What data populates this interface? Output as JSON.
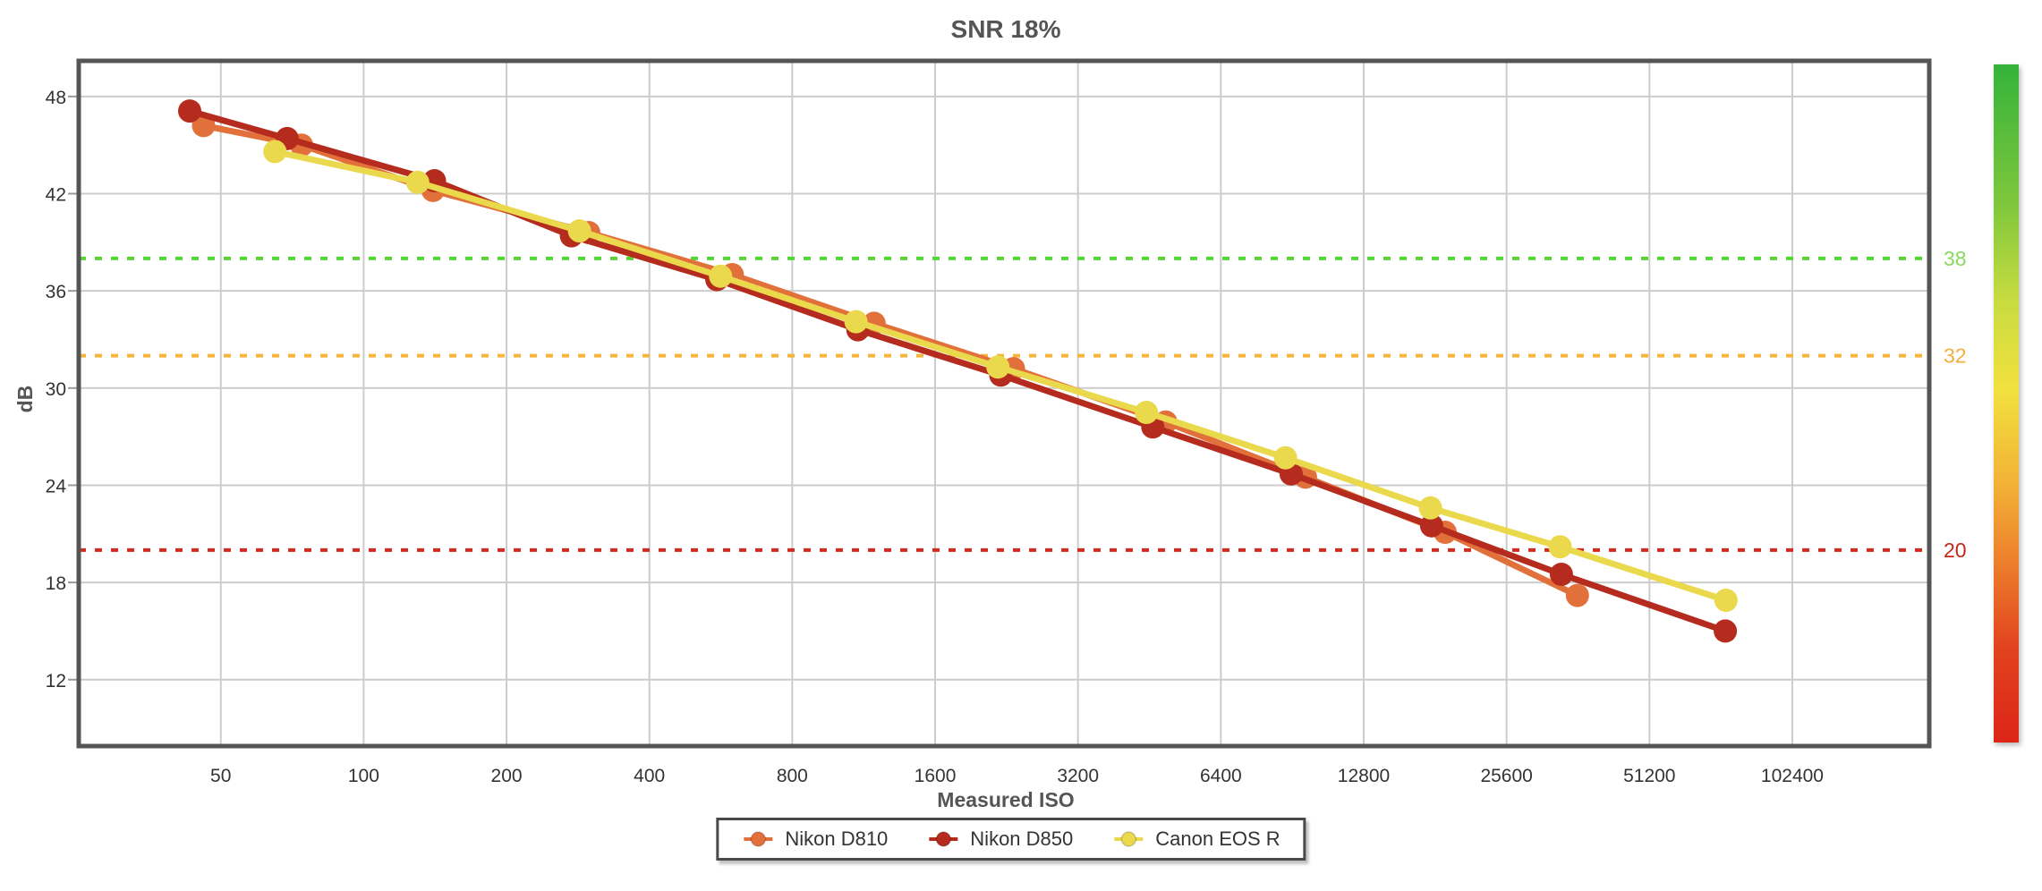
{
  "chart_data": {
    "type": "line",
    "title": "SNR 18%",
    "xlabel": "Measured ISO",
    "ylabel": "dB",
    "x_scale": "log2",
    "grid": true,
    "legend_position": "bottom",
    "x_ticks": [
      50,
      100,
      200,
      400,
      800,
      1600,
      3200,
      6400,
      12800,
      25600,
      51200,
      102400
    ],
    "y_ticks": [
      48,
      42,
      36,
      30,
      24,
      18,
      12
    ],
    "x_range": [
      25.1,
      199000
    ],
    "y_range": [
      7.9,
      50.2
    ],
    "reference_lines": [
      {
        "db": 38,
        "label": "38",
        "line_color": "#55d636",
        "label_color": "#86db5f"
      },
      {
        "db": 32,
        "label": "32",
        "line_color": "#f5b53b",
        "label_color": "#f2af3d"
      },
      {
        "db": 20,
        "label": "20",
        "line_color": "#d02b1d",
        "label_color": "#c3281a"
      }
    ],
    "colorbar": {
      "stops": [
        "#35b33b",
        "#7cc63c",
        "#c8dc40",
        "#f2e13e",
        "#f2b136",
        "#ec7c2b",
        "#e2431f",
        "#dc2517"
      ],
      "offsets": [
        0,
        0.2,
        0.35,
        0.48,
        0.62,
        0.74,
        0.86,
        1
      ]
    },
    "series": [
      {
        "name": "Nikon D810",
        "color": "#e2703a",
        "points": [
          [
            46,
            46.2
          ],
          [
            74,
            45.0
          ],
          [
            140,
            42.2
          ],
          [
            298,
            39.6
          ],
          [
            598,
            37.0
          ],
          [
            1190,
            34.0
          ],
          [
            2340,
            31.2
          ],
          [
            4900,
            27.9
          ],
          [
            9650,
            24.5
          ],
          [
            19000,
            21.1
          ],
          [
            36100,
            17.2
          ]
        ]
      },
      {
        "name": "Nikon D850",
        "color": "#b52b1e",
        "points": [
          [
            43,
            47.1
          ],
          [
            69,
            45.4
          ],
          [
            141,
            42.8
          ],
          [
            274,
            39.4
          ],
          [
            555,
            36.7
          ],
          [
            1100,
            33.6
          ],
          [
            2200,
            30.8
          ],
          [
            4600,
            27.6
          ],
          [
            9000,
            24.7
          ],
          [
            17800,
            21.5
          ],
          [
            33400,
            18.5
          ],
          [
            74000,
            15.0
          ]
        ]
      },
      {
        "name": "Canon EOS R",
        "color": "#ead94c",
        "points": [
          [
            65,
            44.6
          ],
          [
            130,
            42.7
          ],
          [
            285,
            39.7
          ],
          [
            565,
            36.9
          ],
          [
            1090,
            34.1
          ],
          [
            2170,
            31.3
          ],
          [
            4460,
            28.5
          ],
          [
            8760,
            25.7
          ],
          [
            17700,
            22.6
          ],
          [
            33200,
            20.2
          ],
          [
            74200,
            16.9
          ]
        ]
      }
    ],
    "style_colors": {
      "grid": "#cccccc",
      "plot_border": "#555555",
      "tick_text": "#333333",
      "title_text": "#555555"
    }
  }
}
